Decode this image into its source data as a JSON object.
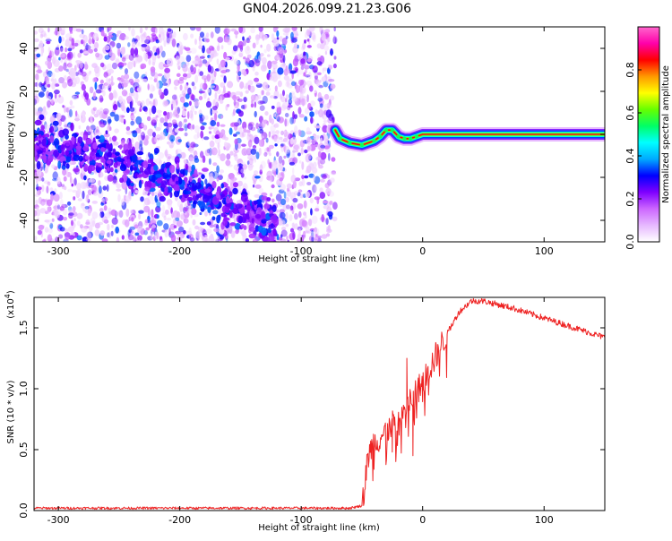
{
  "title": "GN04.2026.099.21.23.G06",
  "chart_data": [
    {
      "type": "heatmap",
      "title": "GN04.2026.099.21.23.G06",
      "xlabel": "Height of straight line (km)",
      "ylabel": "Frequency (Hz)",
      "xlim": [
        -320,
        150
      ],
      "ylim": [
        -50,
        50
      ],
      "x_ticks": [
        -300,
        -200,
        -100,
        0,
        100
      ],
      "y_ticks": [
        -40,
        -20,
        0,
        20,
        40
      ],
      "colorbar": {
        "label": "Normalized spectral amplitude",
        "range": [
          0,
          1
        ],
        "ticks": [
          "0.0",
          "0.2",
          "0.4",
          "0.6",
          "0.8"
        ],
        "colors": [
          "#ffffff",
          "#e6b8ff",
          "#cc66ff",
          "#7f00ff",
          "#0000ff",
          "#00aaff",
          "#00ffff",
          "#00ff66",
          "#66ff00",
          "#ffff00",
          "#ff9900",
          "#ff0000",
          "#ff00aa",
          "#ff66cc"
        ]
      },
      "noise_region_xlim": [
        -320,
        -72
      ],
      "diagonal_trace": [
        {
          "x": -320,
          "y": -5
        },
        {
          "x": -270,
          "y": -8
        },
        {
          "x": -240,
          "y": -15
        },
        {
          "x": -200,
          "y": -22
        },
        {
          "x": -170,
          "y": -30
        },
        {
          "x": -140,
          "y": -38
        },
        {
          "x": -120,
          "y": -44
        }
      ],
      "signal_trace": [
        {
          "x": -72,
          "y": 2
        },
        {
          "x": -68,
          "y": -2
        },
        {
          "x": -60,
          "y": -4
        },
        {
          "x": -50,
          "y": -5
        },
        {
          "x": -40,
          "y": -3
        },
        {
          "x": -35,
          "y": -1
        },
        {
          "x": -30,
          "y": 2
        },
        {
          "x": -25,
          "y": 2
        },
        {
          "x": -20,
          "y": -1
        },
        {
          "x": -15,
          "y": -2
        },
        {
          "x": -10,
          "y": -2
        },
        {
          "x": -5,
          "y": -1
        },
        {
          "x": 0,
          "y": 0
        },
        {
          "x": 50,
          "y": 0
        },
        {
          "x": 100,
          "y": 0
        },
        {
          "x": 150,
          "y": 0
        }
      ]
    },
    {
      "type": "line",
      "xlabel": "Height of straight line (km)",
      "ylabel": "SNR (10 * v/v)",
      "y_multiplier_label": "(x10",
      "y_multiplier_exp": "4",
      "y_multiplier_close": ")",
      "xlim": [
        -320,
        150
      ],
      "ylim": [
        0,
        1.75
      ],
      "x_ticks": [
        -300,
        -200,
        -100,
        0,
        100
      ],
      "y_ticks": [
        "0.0",
        "0.5",
        "1.0",
        "1.5"
      ],
      "series": [
        {
          "color": "#ee2222",
          "points": [
            {
              "x": -320,
              "y": 0.02
            },
            {
              "x": -200,
              "y": 0.02
            },
            {
              "x": -60,
              "y": 0.02
            },
            {
              "x": -50,
              "y": 0.04
            },
            {
              "x": -47,
              "y": 0.25
            },
            {
              "x": -45,
              "y": 0.45
            },
            {
              "x": -40,
              "y": 0.55
            },
            {
              "x": -30,
              "y": 0.65
            },
            {
              "x": -20,
              "y": 0.75
            },
            {
              "x": -10,
              "y": 0.9
            },
            {
              "x": 0,
              "y": 1.05
            },
            {
              "x": 10,
              "y": 1.25
            },
            {
              "x": 20,
              "y": 1.45
            },
            {
              "x": 30,
              "y": 1.63
            },
            {
              "x": 40,
              "y": 1.72
            },
            {
              "x": 50,
              "y": 1.72
            },
            {
              "x": 75,
              "y": 1.66
            },
            {
              "x": 100,
              "y": 1.58
            },
            {
              "x": 125,
              "y": 1.5
            },
            {
              "x": 150,
              "y": 1.42
            }
          ],
          "spikes": [
            {
              "x": -25,
              "y": 0.48
            },
            {
              "x": -13,
              "y": 1.25
            },
            {
              "x": -8,
              "y": 0.45
            },
            {
              "x": 20,
              "y": 1.35
            }
          ]
        }
      ]
    }
  ]
}
